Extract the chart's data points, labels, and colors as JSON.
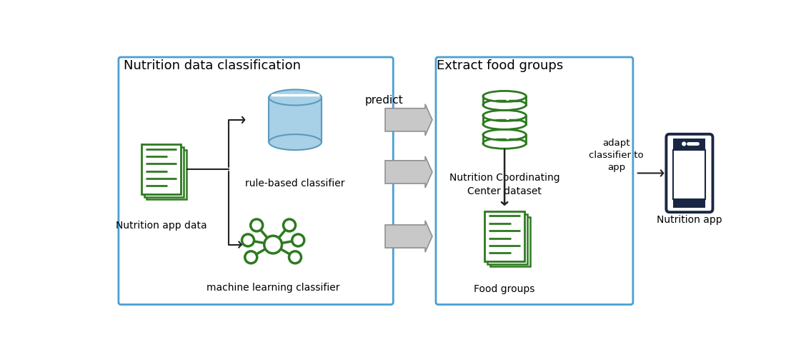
{
  "background_color": "#ffffff",
  "box_color": "#4a9fd4",
  "green_color": "#2d7a1f",
  "blue_cyl_face": "#a8d0e6",
  "blue_cyl_edge": "#5a9abd",
  "dark_navy": "#1a2744",
  "box1_title": "Nutrition data classification",
  "box2_title": "Extract food groups",
  "label_nutrition_app": "Nutrition app data",
  "label_rule_based": "rule-based classifier",
  "label_ml": "machine learning classifier",
  "label_ncc": "Nutrition Coordinating\nCenter dataset",
  "label_food_groups": "Food groups",
  "label_predict": "predict",
  "label_adapt": "adapt\nclassifier to\napp",
  "label_nutrition_app_right": "Nutrition app",
  "arrow_black": "#222222"
}
